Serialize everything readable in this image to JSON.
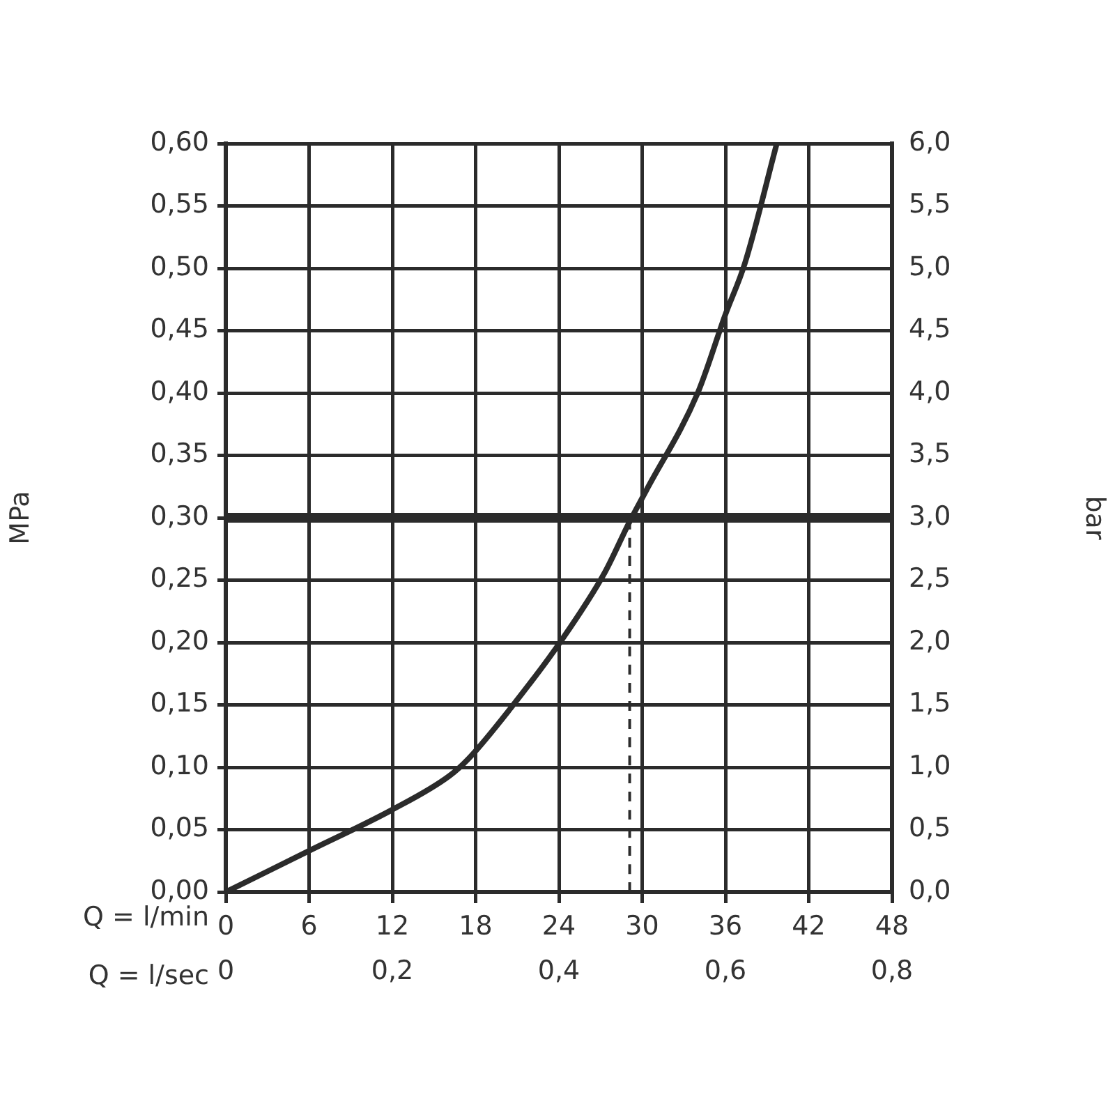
{
  "chart_data": {
    "type": "line",
    "xlabel": "Q = l/min",
    "x2label": "Q = l/sec",
    "ylabel": "MPa",
    "y2label": "bar",
    "xlim": [
      0,
      48
    ],
    "xticks": [
      0,
      6,
      12,
      18,
      24,
      30,
      36,
      42,
      48
    ],
    "x2lim": [
      0,
      0.8
    ],
    "x2ticks": [
      0,
      {
        "value": 0.2,
        "label": "0,2"
      },
      {
        "value": 0.4,
        "label": "0,4"
      },
      {
        "value": 0.6,
        "label": "0,6"
      },
      {
        "value": 0.8,
        "label": "0,8"
      }
    ],
    "ylim": [
      0,
      0.6
    ],
    "yticks": [
      {
        "value": 0,
        "label": "0,00"
      },
      {
        "value": 0.05,
        "label": "0,05"
      },
      {
        "value": 0.1,
        "label": "0,10"
      },
      {
        "value": 0.15,
        "label": "0,15"
      },
      {
        "value": 0.2,
        "label": "0,20"
      },
      {
        "value": 0.25,
        "label": "0,25"
      },
      {
        "value": 0.3,
        "label": "0,30"
      },
      {
        "value": 0.35,
        "label": "0,35"
      },
      {
        "value": 0.4,
        "label": "0,40"
      },
      {
        "value": 0.45,
        "label": "0,45"
      },
      {
        "value": 0.5,
        "label": "0,50"
      },
      {
        "value": 0.55,
        "label": "0,55"
      },
      {
        "value": 0.6,
        "label": "0,60"
      }
    ],
    "y2lim": [
      0,
      6
    ],
    "y2ticks": [
      {
        "value": 0,
        "label": "0,0"
      },
      {
        "value": 0.5,
        "label": "0,5"
      },
      {
        "value": 1,
        "label": "1,0"
      },
      {
        "value": 1.5,
        "label": "1,5"
      },
      {
        "value": 2,
        "label": "2,0"
      },
      {
        "value": 2.5,
        "label": "2,5"
      },
      {
        "value": 3,
        "label": "3,0"
      },
      {
        "value": 3.5,
        "label": "3,5"
      },
      {
        "value": 4,
        "label": "4,0"
      },
      {
        "value": 4.5,
        "label": "4,5"
      },
      {
        "value": 5,
        "label": "5,0"
      },
      {
        "value": 5.5,
        "label": "5,5"
      },
      {
        "value": 6,
        "label": "6,0"
      }
    ],
    "grid": true,
    "legend": false,
    "marker": "none",
    "series": [
      {
        "color": "#2b2b2b",
        "line_style": "solid",
        "x": [
          0,
          6,
          12,
          16.1,
          17.5,
          20.5,
          24.2,
          27.3,
          29.1,
          30.3,
          34,
          36,
          37.4,
          39.7
        ],
        "values": [
          0,
          0.033,
          0.066,
          0.093,
          0.107,
          0.147,
          0.202,
          0.256,
          0.297,
          0.322,
          0.4,
          0.463,
          0.504,
          0.6
        ]
      },
      {
        "color": "#2b2b2b",
        "line_style": "dashed",
        "x": [
          29.1,
          29.1
        ],
        "values": [
          0,
          0.3
        ]
      }
    ],
    "ref_lines": [
      {
        "axis": "y",
        "value": 0.3,
        "color": "#2b2b2b"
      }
    ]
  }
}
